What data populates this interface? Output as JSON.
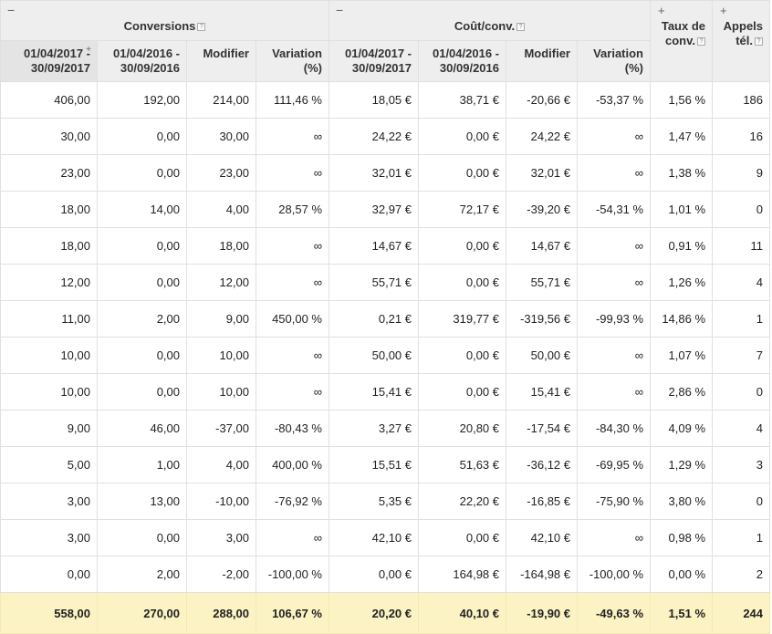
{
  "header": {
    "group_conversions": "Conversions",
    "group_cost": "Coût/conv.",
    "toggle_minus": "−",
    "toggle_plus": "+",
    "help_glyph": "?",
    "taux": "Taux de conv.",
    "appels": "Appels tél.",
    "period_current": "01/04/2017 - 30/09/2017",
    "period_previous": "01/04/2016 - 30/09/2016",
    "modifier": "Modifier",
    "variation": "Variation (%)"
  },
  "rows": [
    [
      "406,00",
      "192,00",
      "214,00",
      "111,46 %",
      "18,05 €",
      "38,71 €",
      "-20,66 €",
      "-53,37 %",
      "1,56 %",
      "186"
    ],
    [
      "30,00",
      "0,00",
      "30,00",
      "∞",
      "24,22 €",
      "0,00 €",
      "24,22 €",
      "∞",
      "1,47 %",
      "16"
    ],
    [
      "23,00",
      "0,00",
      "23,00",
      "∞",
      "32,01 €",
      "0,00 €",
      "32,01 €",
      "∞",
      "1,38 %",
      "9"
    ],
    [
      "18,00",
      "14,00",
      "4,00",
      "28,57 %",
      "32,97 €",
      "72,17 €",
      "-39,20 €",
      "-54,31 %",
      "1,01 %",
      "0"
    ],
    [
      "18,00",
      "0,00",
      "18,00",
      "∞",
      "14,67 €",
      "0,00 €",
      "14,67 €",
      "∞",
      "0,91 %",
      "11"
    ],
    [
      "12,00",
      "0,00",
      "12,00",
      "∞",
      "55,71 €",
      "0,00 €",
      "55,71 €",
      "∞",
      "1,26 %",
      "4"
    ],
    [
      "11,00",
      "2,00",
      "9,00",
      "450,00 %",
      "0,21 €",
      "319,77 €",
      "-319,56 €",
      "-99,93 %",
      "14,86 %",
      "1"
    ],
    [
      "10,00",
      "0,00",
      "10,00",
      "∞",
      "50,00 €",
      "0,00 €",
      "50,00 €",
      "∞",
      "1,07 %",
      "7"
    ],
    [
      "10,00",
      "0,00",
      "10,00",
      "∞",
      "15,41 €",
      "0,00 €",
      "15,41 €",
      "∞",
      "2,86 %",
      "0"
    ],
    [
      "9,00",
      "46,00",
      "-37,00",
      "-80,43 %",
      "3,27 €",
      "20,80 €",
      "-17,54 €",
      "-84,30 %",
      "4,09 %",
      "4"
    ],
    [
      "5,00",
      "1,00",
      "4,00",
      "400,00 %",
      "15,51 €",
      "51,63 €",
      "-36,12 €",
      "-69,95 %",
      "1,29 %",
      "3"
    ],
    [
      "3,00",
      "13,00",
      "-10,00",
      "-76,92 %",
      "5,35 €",
      "22,20 €",
      "-16,85 €",
      "-75,90 %",
      "3,80 %",
      "0"
    ],
    [
      "3,00",
      "0,00",
      "3,00",
      "∞",
      "42,10 €",
      "0,00 €",
      "42,10 €",
      "∞",
      "0,98 %",
      "1"
    ],
    [
      "0,00",
      "2,00",
      "-2,00",
      "-100,00 %",
      "0,00 €",
      "164,98 €",
      "-164,98 €",
      "-100,00 %",
      "0,00 %",
      "2"
    ]
  ],
  "total": [
    "558,00",
    "270,00",
    "288,00",
    "106,67 %",
    "20,20 €",
    "40,10 €",
    "-19,90 €",
    "-49,63 %",
    "1,51 %",
    "244"
  ]
}
